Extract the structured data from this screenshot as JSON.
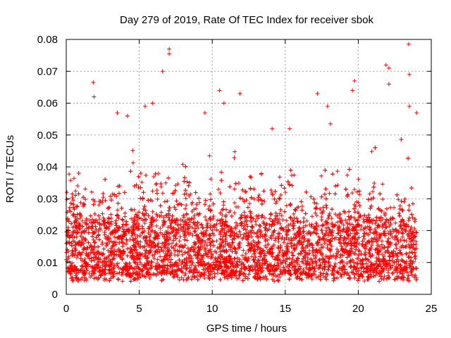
{
  "chart_data": {
    "type": "scatter",
    "title": "Day 279 of 2019, Rate Of TEC Index for receiver sbok",
    "xlabel": "GPS time / hours",
    "ylabel": "ROTI / TECUs",
    "xlim": [
      0,
      25
    ],
    "ylim": [
      0,
      0.08
    ],
    "xticks": [
      0,
      5,
      10,
      15,
      20,
      25
    ],
    "xtick_labels": [
      "0",
      "5",
      "10",
      "15",
      "20",
      "25"
    ],
    "yticks": [
      0,
      0.01,
      0.02,
      0.03,
      0.04,
      0.05,
      0.06,
      0.07,
      0.08
    ],
    "ytick_labels": [
      "0",
      "0.01",
      "0.02",
      "0.03",
      "0.04",
      "0.05",
      "0.06",
      "0.07",
      "0.08"
    ],
    "grid": true,
    "marker": "+",
    "color": "#ff0000",
    "x_range_of_data": [
      0,
      24
    ],
    "series": [
      {
        "name": "ROTI",
        "summary": "Dense band of points mostly between 0.005 and 0.03 TECU/s over 0-24 h, with spikes up to about 0.08",
        "peaks": [
          {
            "x": 1.85,
            "y": 0.0665
          },
          {
            "x": 1.9,
            "y": 0.062
          },
          {
            "x": 3.5,
            "y": 0.057
          },
          {
            "x": 4.2,
            "y": 0.056
          },
          {
            "x": 5.4,
            "y": 0.059
          },
          {
            "x": 5.9,
            "y": 0.06
          },
          {
            "x": 6.6,
            "y": 0.07
          },
          {
            "x": 7.05,
            "y": 0.077
          },
          {
            "x": 7.05,
            "y": 0.0755
          },
          {
            "x": 9.5,
            "y": 0.057
          },
          {
            "x": 10.5,
            "y": 0.064
          },
          {
            "x": 10.8,
            "y": 0.06
          },
          {
            "x": 11.9,
            "y": 0.063
          },
          {
            "x": 14.1,
            "y": 0.052
          },
          {
            "x": 15.3,
            "y": 0.052
          },
          {
            "x": 17.2,
            "y": 0.063
          },
          {
            "x": 17.9,
            "y": 0.059
          },
          {
            "x": 18.1,
            "y": 0.0535
          },
          {
            "x": 19.6,
            "y": 0.064
          },
          {
            "x": 19.75,
            "y": 0.067
          },
          {
            "x": 21.9,
            "y": 0.072
          },
          {
            "x": 22.1,
            "y": 0.071
          },
          {
            "x": 22.1,
            "y": 0.066
          },
          {
            "x": 23.45,
            "y": 0.0785
          },
          {
            "x": 23.5,
            "y": 0.069
          },
          {
            "x": 23.5,
            "y": 0.059
          },
          {
            "x": 24.0,
            "y": 0.057
          }
        ]
      }
    ]
  }
}
